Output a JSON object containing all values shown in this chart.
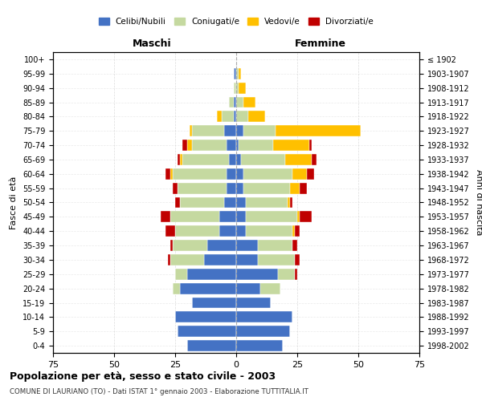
{
  "age_groups": [
    "0-4",
    "5-9",
    "10-14",
    "15-19",
    "20-24",
    "25-29",
    "30-34",
    "35-39",
    "40-44",
    "45-49",
    "50-54",
    "55-59",
    "60-64",
    "65-69",
    "70-74",
    "75-79",
    "80-84",
    "85-89",
    "90-94",
    "95-99",
    "100+"
  ],
  "birth_years": [
    "1998-2002",
    "1993-1997",
    "1988-1992",
    "1983-1987",
    "1978-1982",
    "1973-1977",
    "1968-1972",
    "1963-1967",
    "1958-1962",
    "1953-1957",
    "1948-1952",
    "1943-1947",
    "1938-1942",
    "1933-1937",
    "1928-1932",
    "1923-1927",
    "1918-1922",
    "1913-1917",
    "1908-1912",
    "1903-1907",
    "≤ 1902"
  ],
  "maschi": {
    "celibi": [
      20,
      24,
      25,
      18,
      23,
      20,
      13,
      12,
      7,
      7,
      5,
      4,
      4,
      3,
      4,
      5,
      1,
      1,
      0,
      1,
      0
    ],
    "coniugati": [
      0,
      0,
      0,
      0,
      3,
      5,
      14,
      14,
      18,
      20,
      18,
      20,
      22,
      19,
      14,
      13,
      5,
      2,
      1,
      0,
      0
    ],
    "vedovi": [
      0,
      0,
      0,
      0,
      0,
      0,
      0,
      0,
      0,
      0,
      0,
      0,
      1,
      1,
      2,
      1,
      2,
      0,
      0,
      0,
      0
    ],
    "divorziati": [
      0,
      0,
      0,
      0,
      0,
      0,
      1,
      1,
      4,
      4,
      2,
      2,
      2,
      1,
      2,
      0,
      0,
      0,
      0,
      0,
      0
    ]
  },
  "femmine": {
    "nubili": [
      19,
      22,
      23,
      14,
      10,
      17,
      9,
      9,
      4,
      4,
      4,
      3,
      3,
      2,
      1,
      3,
      0,
      0,
      0,
      0,
      0
    ],
    "coniugate": [
      0,
      0,
      0,
      0,
      8,
      7,
      15,
      14,
      19,
      21,
      17,
      19,
      20,
      18,
      14,
      13,
      5,
      3,
      1,
      1,
      0
    ],
    "vedove": [
      0,
      0,
      0,
      0,
      0,
      0,
      0,
      0,
      1,
      1,
      1,
      4,
      6,
      11,
      15,
      35,
      7,
      5,
      3,
      1,
      0
    ],
    "divorziate": [
      0,
      0,
      0,
      0,
      0,
      1,
      2,
      2,
      2,
      5,
      1,
      3,
      3,
      2,
      1,
      0,
      0,
      0,
      0,
      0,
      0
    ]
  },
  "colors": {
    "celibi": "#4472c4",
    "coniugati": "#c5d9a0",
    "vedovi": "#ffc000",
    "divorziati": "#c00000"
  },
  "xlim": 75,
  "title": "Popolazione per età, sesso e stato civile - 2003",
  "subtitle": "COMUNE DI LAURIANO (TO) - Dati ISTAT 1° gennaio 2003 - Elaborazione TUTTITALIA.IT",
  "ylabel_left": "Fasce di età",
  "ylabel_right": "Anni di nascita",
  "label_maschi": "Maschi",
  "label_femmine": "Femmine",
  "legend_labels": [
    "Celibi/Nubili",
    "Coniugati/e",
    "Vedovi/e",
    "Divorziati/e"
  ],
  "bg_color": "#ffffff",
  "grid_color": "#cccccc"
}
